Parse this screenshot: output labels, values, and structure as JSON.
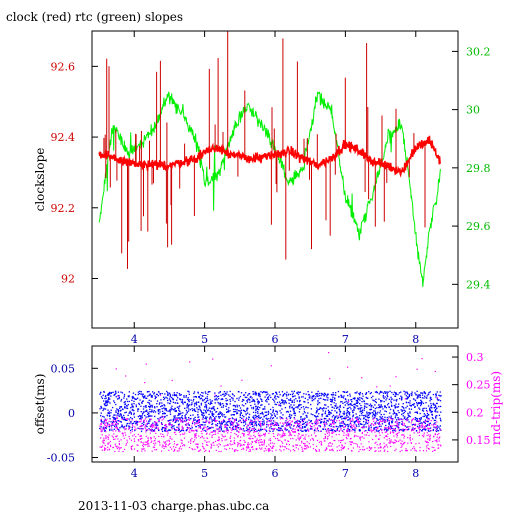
{
  "page": {
    "title": "clock (red) rtc (green) slopes",
    "footer": "2013-11-03 charge.phas.ubc.ca"
  },
  "colors": {
    "clock": "#ff0000",
    "rtc": "#00ee00",
    "offset": "#0000ff",
    "roundtrip": "#ff00ff",
    "frame": "#000000",
    "bottom_axis": "#0000aa"
  },
  "chart_data": [
    {
      "type": "line",
      "title": "clock (red) rtc (green) slopes",
      "xlabel": "",
      "ylabel": "clockslope",
      "y2label": "",
      "xlim": [
        3.4,
        8.6
      ],
      "ylim": [
        91.86,
        92.7
      ],
      "y2lim": [
        29.25,
        30.27
      ],
      "xticks": [
        4,
        5,
        6,
        7,
        8
      ],
      "yticks": [
        92,
        92.2,
        92.4,
        92.6
      ],
      "y2ticks": [
        29.4,
        29.6,
        29.8,
        30,
        30.2
      ],
      "grid": false,
      "series": [
        {
          "name": "clock",
          "axis": "left",
          "x": [
            3.5,
            3.7,
            3.9,
            4.1,
            4.3,
            4.5,
            4.7,
            4.9,
            5.0,
            5.2,
            5.4,
            5.6,
            5.8,
            6.0,
            6.2,
            6.4,
            6.6,
            6.8,
            7.0,
            7.2,
            7.4,
            7.6,
            7.8,
            8.0,
            8.2,
            8.35
          ],
          "y": [
            92.35,
            92.34,
            92.33,
            92.32,
            92.32,
            92.32,
            92.33,
            92.34,
            92.36,
            92.37,
            92.35,
            92.34,
            92.34,
            92.35,
            92.36,
            92.34,
            92.32,
            92.34,
            92.38,
            92.36,
            92.33,
            92.32,
            92.3,
            92.37,
            92.39,
            92.33
          ]
        },
        {
          "name": "rtc",
          "axis": "right",
          "x": [
            3.5,
            3.6,
            3.7,
            3.9,
            4.1,
            4.3,
            4.5,
            4.7,
            4.9,
            5.0,
            5.2,
            5.4,
            5.6,
            5.8,
            6.0,
            6.2,
            6.4,
            6.6,
            6.8,
            7.0,
            7.2,
            7.4,
            7.6,
            7.8,
            7.9,
            8.0,
            8.1,
            8.2,
            8.3,
            8.35
          ],
          "y": [
            29.6,
            29.78,
            29.95,
            29.85,
            29.88,
            29.95,
            30.05,
            29.98,
            29.88,
            29.75,
            29.78,
            29.92,
            30.02,
            29.95,
            29.87,
            29.75,
            29.8,
            30.05,
            30.0,
            29.7,
            29.58,
            29.72,
            29.9,
            29.95,
            29.78,
            29.56,
            29.4,
            29.6,
            29.7,
            29.8
          ]
        }
      ]
    },
    {
      "type": "scatter",
      "xlabel": "",
      "ylabel": "offset(ms)",
      "y2label": "rnd-trip(ms)",
      "xlim": [
        3.4,
        8.6
      ],
      "ylim": [
        -0.055,
        0.075
      ],
      "y2lim": [
        0.11,
        0.32
      ],
      "xticks": [
        4,
        5,
        6,
        7,
        8
      ],
      "yticks": [
        -0.05,
        0,
        0.05
      ],
      "y2ticks": [
        0.15,
        0.2,
        0.25,
        0.3
      ],
      "grid": false,
      "series": [
        {
          "name": "offset",
          "axis": "left",
          "band": [
            -0.02,
            0.025
          ],
          "x": [
            3.5,
            4.0,
            4.5,
            5.0,
            5.5,
            6.0,
            6.5,
            7.0,
            7.5,
            8.0,
            8.35
          ],
          "y": [
            0.002,
            0.003,
            0.002,
            0.001,
            0.002,
            0.002,
            0.001,
            0.002,
            0.003,
            0.002,
            0.002
          ]
        },
        {
          "name": "roundtrip",
          "axis": "right",
          "band": [
            0.13,
            0.19
          ],
          "x": [
            3.5,
            4.0,
            4.5,
            5.0,
            5.5,
            6.0,
            6.5,
            7.0,
            7.5,
            8.0,
            8.35
          ],
          "y": [
            0.16,
            0.16,
            0.165,
            0.16,
            0.16,
            0.16,
            0.165,
            0.16,
            0.16,
            0.165,
            0.16
          ]
        }
      ]
    }
  ]
}
